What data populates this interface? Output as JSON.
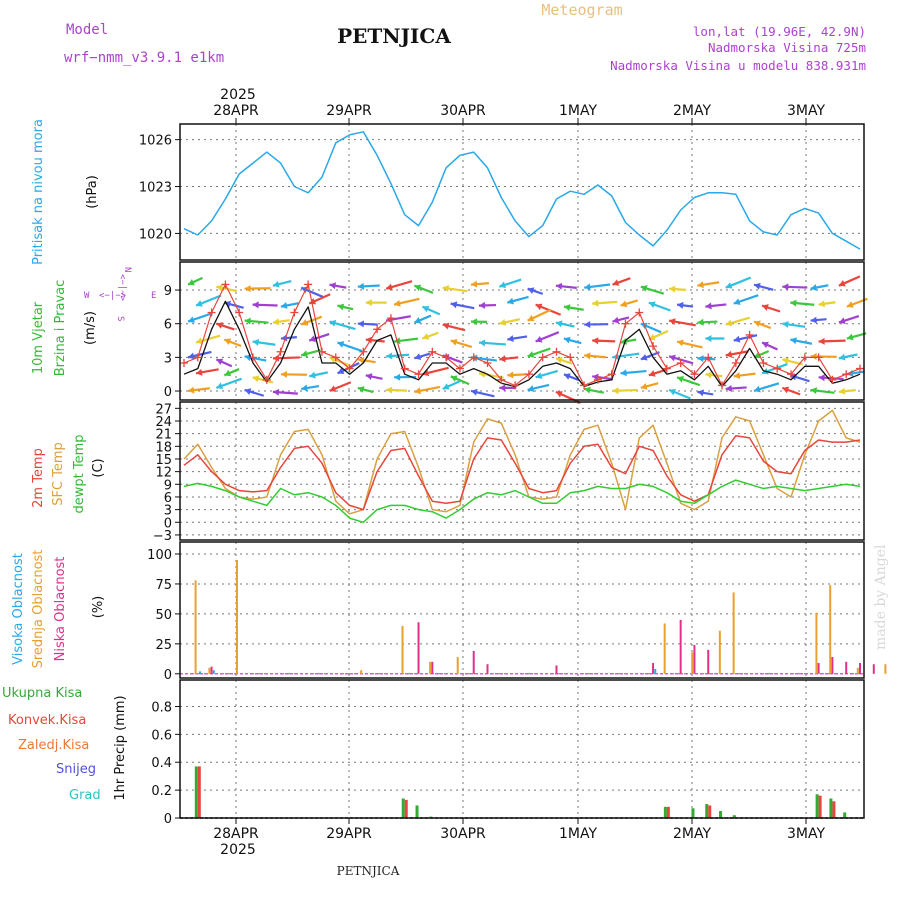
{
  "header": {
    "model_label": "Model",
    "model_name": "wrf−nmm_v3.9.1  e1km",
    "station": "PETNJICA",
    "product": "Meteogram",
    "lonlat": "lon,lat (19.96E, 42.9N)",
    "elevation": "Nadmorska Visina 725m",
    "model_elevation": "Nadmorska Visina u modelu 838.931m",
    "year_top": "2025",
    "year_bottom": "2025",
    "footer_station": "PETNJICA",
    "credit": "made by Angel"
  },
  "colors": {
    "pressure": "#2aa8e8",
    "temp2m": "#e8453c",
    "sfc": "#d9a040",
    "dew": "#33cc33",
    "high_cloud": "#2aa8e8",
    "mid_cloud": "#e8a030",
    "low_cloud": "#e0308a",
    "total_precip": "#33aa33",
    "convective": "#e8453c",
    "freezing": "#f07830",
    "snow": "#5050e0",
    "hail": "#30c0c0",
    "wind_label": "#33bb33",
    "compass": "#aa44cc"
  },
  "chart_data": [
    {
      "type": "line",
      "panel": "pressure",
      "ylabel_lines": [
        "Pritisak na nivou mora"
      ],
      "unit": "(hPa)",
      "x_ticks": [
        "28APR",
        "29APR",
        "30APR",
        "1MAY",
        "2MAY",
        "3MAY"
      ],
      "yticks": [
        1020,
        1023,
        1026
      ],
      "ylim": [
        1018.3,
        1027.0
      ],
      "grid": true,
      "series": [
        {
          "values": [
            1020.3,
            1019.9,
            1020.8,
            1022.2,
            1023.8,
            1024.5,
            1025.2,
            1024.5,
            1023.0,
            1022.6,
            1023.6,
            1025.8,
            1026.3,
            1026.5,
            1025.0,
            1023.2,
            1021.2,
            1020.5,
            1022.0,
            1024.2,
            1025.0,
            1025.2,
            1024.2,
            1022.3,
            1020.8,
            1019.8,
            1020.5,
            1022.2,
            1022.7,
            1022.5,
            1023.1,
            1022.4,
            1020.7,
            1019.9,
            1019.2,
            1020.2,
            1021.5,
            1022.3,
            1022.6,
            1022.6,
            1022.5,
            1020.8,
            1020.1,
            1019.9,
            1021.2,
            1021.6,
            1021.3,
            1020.0,
            1019.5,
            1019.0
          ]
        }
      ]
    },
    {
      "type": "line",
      "panel": "wind",
      "ylabel_lines": [
        "10m Vjetar",
        "Brzina i Pravac"
      ],
      "unit": "(m/s)",
      "compass": {
        "n": "N",
        "s": "S",
        "e": "E",
        "w": "W"
      },
      "yticks": [
        0,
        3,
        6,
        9
      ],
      "ylim": [
        -0.8,
        11.5
      ],
      "grid": true,
      "series": [
        {
          "name": "gust",
          "values": [
            2.5,
            3.0,
            7.0,
            9.5,
            7.0,
            3.0,
            1.0,
            3.5,
            7.0,
            9.5,
            3.5,
            3.0,
            2.0,
            3.5,
            5.5,
            6.5,
            2.0,
            1.5,
            3.5,
            3.0,
            2.0,
            3.0,
            2.5,
            1.0,
            0.5,
            1.5,
            3.0,
            3.5,
            3.0,
            0.5,
            1.0,
            1.5,
            6.0,
            7.0,
            4.0,
            2.0,
            2.5,
            1.5,
            3.0,
            0.5,
            2.5,
            5.0,
            2.5,
            2.0,
            1.5,
            3.0,
            3.0,
            1.0,
            1.5,
            2.0
          ]
        },
        {
          "name": "speed",
          "values": [
            1.5,
            2.0,
            5.5,
            8.0,
            5.5,
            2.5,
            0.8,
            2.5,
            5.5,
            7.5,
            2.5,
            2.5,
            1.5,
            2.5,
            4.5,
            5.0,
            1.5,
            1.0,
            2.5,
            2.5,
            1.5,
            2.0,
            1.5,
            0.7,
            0.4,
            1.0,
            2.2,
            2.5,
            2.0,
            0.4,
            0.8,
            1.0,
            4.5,
            5.5,
            3.0,
            1.5,
            1.8,
            1.0,
            2.2,
            0.4,
            1.8,
            3.8,
            1.8,
            1.5,
            1.0,
            2.2,
            2.2,
            0.7,
            1.0,
            1.5
          ]
        }
      ]
    },
    {
      "type": "line",
      "panel": "temperature",
      "ylabel_lines": [
        "2m Temp",
        "SFC Temp",
        "dewpt Temp"
      ],
      "unit": "(C)",
      "yticks": [
        -3,
        0,
        3,
        6,
        9,
        12,
        15,
        18,
        21,
        24,
        27
      ],
      "ylim": [
        -4.2,
        28.5
      ],
      "grid": true,
      "series": [
        {
          "name": "2m Temp",
          "values": [
            13.5,
            16.0,
            12.0,
            9.0,
            7.5,
            7.2,
            7.5,
            13.0,
            17.5,
            18.0,
            14.0,
            7.0,
            4.0,
            3.0,
            12.0,
            17.0,
            17.5,
            11.0,
            5.0,
            4.5,
            5.0,
            15.0,
            20.0,
            19.5,
            14.0,
            8.0,
            7.0,
            7.5,
            14.0,
            18.0,
            18.5,
            13.0,
            11.5,
            18.0,
            17.0,
            11.0,
            6.5,
            5.0,
            6.5,
            16.0,
            20.5,
            20.0,
            14.5,
            12.0,
            11.5,
            17.0,
            19.5,
            19.0,
            19.0,
            19.5
          ]
        },
        {
          "name": "SFC Temp",
          "values": [
            15.0,
            18.5,
            13.0,
            8.0,
            6.0,
            5.5,
            6.0,
            16.0,
            21.5,
            22.0,
            16.0,
            5.0,
            2.0,
            3.0,
            15.0,
            21.0,
            21.5,
            13.0,
            3.0,
            2.5,
            4.0,
            19.0,
            24.5,
            23.5,
            16.0,
            6.0,
            5.5,
            6.0,
            16.0,
            22.0,
            23.0,
            14.0,
            3.0,
            20.0,
            23.0,
            14.0,
            4.5,
            3.0,
            5.0,
            20.0,
            25.0,
            24.0,
            16.0,
            8.0,
            6.0,
            16.0,
            24.0,
            26.5,
            20.0,
            19.0
          ]
        },
        {
          "name": "dewpt Temp",
          "values": [
            8.5,
            9.2,
            8.5,
            7.5,
            6.0,
            5.0,
            4.0,
            8.0,
            6.5,
            7.0,
            6.0,
            4.0,
            1.0,
            0.0,
            3.0,
            4.0,
            4.0,
            3.0,
            2.5,
            1.0,
            3.0,
            5.5,
            7.0,
            6.5,
            7.5,
            6.0,
            4.5,
            4.5,
            7.0,
            7.5,
            8.5,
            8.0,
            8.0,
            9.0,
            8.5,
            7.0,
            5.0,
            4.5,
            6.5,
            8.5,
            10.0,
            9.0,
            8.0,
            8.5,
            8.0,
            7.5,
            8.0,
            8.5,
            9.0,
            8.5
          ]
        }
      ]
    },
    {
      "type": "bar",
      "panel": "cloud",
      "ylabel_lines": [
        "Visoka Oblacnost",
        "Srednja Oblacnost",
        "Niska Oblacnost"
      ],
      "unit": "(%)",
      "yticks": [
        0,
        25,
        50,
        75,
        100
      ],
      "ylim": [
        -3.5,
        110
      ],
      "grid": true,
      "series": [
        {
          "name": "Visoka Oblacnost",
          "points": [
            [
              1,
              2
            ],
            [
              2,
              3
            ],
            [
              34,
              4
            ],
            [
              53,
              3
            ],
            [
              55,
              4
            ],
            [
              58,
              32
            ],
            [
              59,
              4
            ]
          ]
        },
        {
          "name": "Srednja Oblacnost",
          "points": [
            [
              1,
              78
            ],
            [
              2,
              5
            ],
            [
              4,
              95
            ],
            [
              13,
              3
            ],
            [
              16,
              40
            ],
            [
              18,
              10
            ],
            [
              20,
              14
            ],
            [
              35,
              42
            ],
            [
              37,
              18
            ],
            [
              39,
              36
            ],
            [
              40,
              68
            ],
            [
              46,
              51
            ],
            [
              47,
              74
            ],
            [
              49,
              5
            ],
            [
              51,
              8
            ],
            [
              58,
              100
            ]
          ]
        },
        {
          "name": "Niska Oblacnost",
          "points": [
            [
              2,
              6
            ],
            [
              17,
              43
            ],
            [
              18,
              10
            ],
            [
              21,
              19
            ],
            [
              22,
              8
            ],
            [
              27,
              7
            ],
            [
              34,
              9
            ],
            [
              36,
              45
            ],
            [
              37,
              24
            ],
            [
              38,
              20
            ],
            [
              46,
              9
            ],
            [
              47,
              14
            ],
            [
              48,
              10
            ],
            [
              49,
              9
            ],
            [
              50,
              8
            ]
          ]
        }
      ]
    },
    {
      "type": "bar",
      "panel": "precip",
      "ylabel": "1hr Precip (mm)",
      "legend": [
        "Ukupna  Kisa",
        "Konvek.Kisa",
        "Zaledj.Kisa",
        "Snijeg",
        "Grad"
      ],
      "yticks": [
        0,
        0.2,
        0.4,
        0.6,
        0.8
      ],
      "ylim": [
        0,
        0.99
      ],
      "grid": true,
      "x_ticks": [
        "28APR",
        "29APR",
        "30APR",
        "1MAY",
        "2MAY",
        "3MAY"
      ],
      "series": [
        {
          "name": "Ukupna  Kisa",
          "points": [
            [
              1,
              0.37
            ],
            [
              16,
              0.14
            ],
            [
              17,
              0.09
            ],
            [
              18,
              0.01
            ],
            [
              35,
              0.08
            ],
            [
              37,
              0.07
            ],
            [
              38,
              0.1
            ],
            [
              39,
              0.05
            ],
            [
              40,
              0.02
            ],
            [
              46,
              0.17
            ],
            [
              47,
              0.14
            ],
            [
              48,
              0.04
            ],
            [
              58,
              0.18
            ]
          ]
        },
        {
          "name": "Konvek.Kisa",
          "points": [
            [
              1,
              0.37
            ],
            [
              16,
              0.13
            ],
            [
              35,
              0.08
            ],
            [
              38,
              0.09
            ],
            [
              46,
              0.16
            ],
            [
              47,
              0.12
            ],
            [
              58,
              0.17
            ]
          ]
        }
      ]
    }
  ]
}
